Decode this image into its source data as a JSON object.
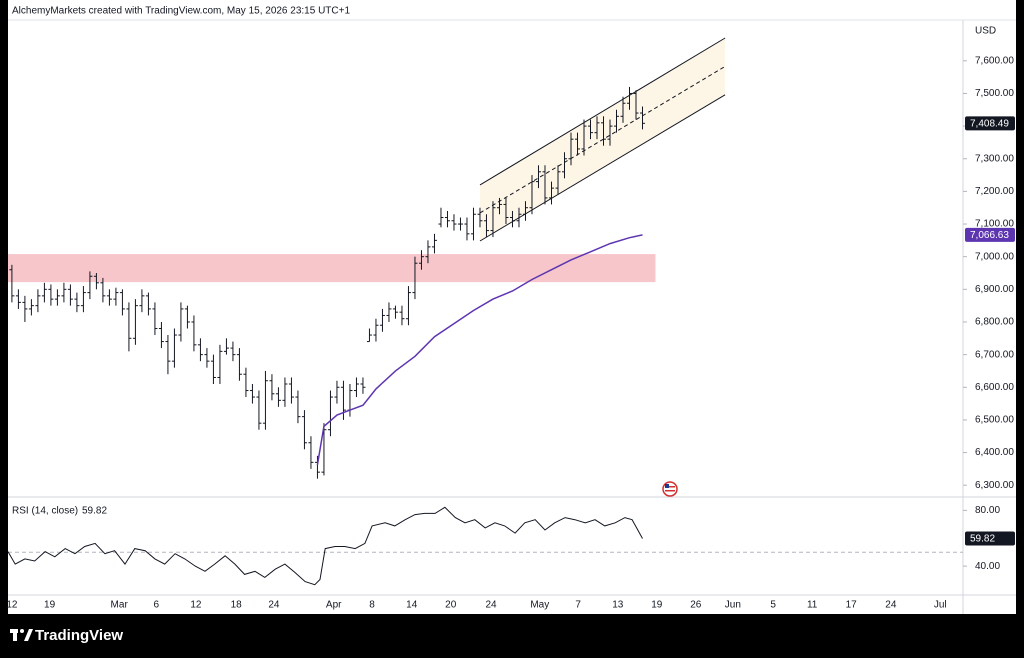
{
  "chart_data": [
    {
      "type": "ohlc",
      "title": "AlchemyMarkets created with TradingView.com, May 15, 2026 23:15 UTC+1",
      "currency": "USD",
      "color": "#131722",
      "x": [
        0,
        1,
        2,
        3,
        4,
        5,
        6,
        7,
        8,
        9,
        10,
        11,
        12,
        13,
        14,
        15,
        16,
        17,
        18,
        19,
        20,
        21,
        22,
        23,
        24,
        25,
        26,
        27,
        28,
        29,
        30,
        31,
        32,
        33,
        34,
        35,
        36,
        37,
        38,
        39,
        40,
        41,
        42,
        43,
        44,
        45,
        46,
        47,
        48,
        49,
        50,
        51,
        52,
        53,
        54,
        55,
        56,
        57,
        58,
        59,
        60,
        61,
        62,
        63,
        64,
        65,
        66,
        67,
        68,
        69,
        70,
        71,
        72,
        73,
        74,
        75,
        76,
        77,
        78,
        79,
        80,
        81,
        82,
        83,
        84,
        85,
        86,
        87,
        88,
        89,
        90,
        91,
        92,
        93,
        94,
        95,
        96,
        97
      ],
      "ohlc": [
        [
          6960,
          6975,
          6860,
          6880
        ],
        [
          6880,
          6900,
          6840,
          6860
        ],
        [
          6860,
          6880,
          6800,
          6840
        ],
        [
          6840,
          6870,
          6820,
          6850
        ],
        [
          6850,
          6900,
          6830,
          6880
        ],
        [
          6880,
          6920,
          6860,
          6900
        ],
        [
          6900,
          6915,
          6850,
          6870
        ],
        [
          6870,
          6900,
          6850,
          6880
        ],
        [
          6880,
          6920,
          6860,
          6900
        ],
        [
          6900,
          6915,
          6850,
          6870
        ],
        [
          6870,
          6890,
          6830,
          6850
        ],
        [
          6850,
          6910,
          6830,
          6890
        ],
        [
          6890,
          6955,
          6870,
          6940
        ],
        [
          6940,
          6950,
          6900,
          6920
        ],
        [
          6920,
          6935,
          6860,
          6880
        ],
        [
          6880,
          6900,
          6850,
          6870
        ],
        [
          6870,
          6905,
          6850,
          6890
        ],
        [
          6890,
          6900,
          6820,
          6840
        ],
        [
          6840,
          6860,
          6710,
          6750
        ],
        [
          6750,
          6870,
          6730,
          6850
        ],
        [
          6850,
          6900,
          6830,
          6880
        ],
        [
          6880,
          6890,
          6820,
          6840
        ],
        [
          6840,
          6860,
          6760,
          6780
        ],
        [
          6780,
          6800,
          6720,
          6740
        ],
        [
          6740,
          6760,
          6640,
          6680
        ],
        [
          6680,
          6780,
          6660,
          6760
        ],
        [
          6760,
          6860,
          6740,
          6840
        ],
        [
          6840,
          6850,
          6780,
          6800
        ],
        [
          6800,
          6820,
          6710,
          6730
        ],
        [
          6730,
          6750,
          6680,
          6700
        ],
        [
          6700,
          6720,
          6660,
          6680
        ],
        [
          6680,
          6700,
          6610,
          6630
        ],
        [
          6630,
          6730,
          6610,
          6710
        ],
        [
          6710,
          6750,
          6700,
          6720
        ],
        [
          6720,
          6740,
          6680,
          6700
        ],
        [
          6700,
          6720,
          6620,
          6640
        ],
        [
          6640,
          6660,
          6570,
          6590
        ],
        [
          6590,
          6610,
          6550,
          6570
        ],
        [
          6570,
          6590,
          6470,
          6490
        ],
        [
          6490,
          6650,
          6470,
          6620
        ],
        [
          6620,
          6640,
          6560,
          6580
        ],
        [
          6580,
          6600,
          6540,
          6560
        ],
        [
          6560,
          6630,
          6540,
          6610
        ],
        [
          6610,
          6630,
          6550,
          6570
        ],
        [
          6570,
          6590,
          6490,
          6510
        ],
        [
          6510,
          6530,
          6410,
          6430
        ],
        [
          6430,
          6450,
          6350,
          6370
        ],
        [
          6370,
          6390,
          6320,
          6340
        ],
        [
          6340,
          6490,
          6330,
          6470
        ],
        [
          6470,
          6590,
          6450,
          6570
        ],
        [
          6570,
          6620,
          6550,
          6600
        ],
        [
          6600,
          6620,
          6500,
          6530
        ],
        [
          6530,
          6610,
          6510,
          6590
        ],
        [
          6590,
          6630,
          6570,
          6610
        ],
        [
          6610,
          6630,
          6580,
          6600
        ],
        [
          6740,
          6780,
          6740,
          6760
        ],
        [
          6760,
          6810,
          6740,
          6790
        ],
        [
          6790,
          6840,
          6770,
          6820
        ],
        [
          6820,
          6860,
          6800,
          6840
        ],
        [
          6840,
          6850,
          6810,
          6830
        ],
        [
          6830,
          6850,
          6790,
          6810
        ],
        [
          6810,
          6910,
          6790,
          6890
        ],
        [
          6890,
          7000,
          6870,
          6980
        ],
        [
          6980,
          7020,
          6960,
          7000
        ],
        [
          7000,
          7050,
          6980,
          7030
        ],
        [
          7030,
          7070,
          7010,
          7050
        ],
        [
          7100,
          7150,
          7090,
          7120
        ],
        [
          7120,
          7140,
          7090,
          7110
        ],
        [
          7110,
          7130,
          7080,
          7100
        ],
        [
          7100,
          7120,
          7080,
          7100
        ],
        [
          7100,
          7120,
          7050,
          7070
        ],
        [
          7070,
          7150,
          7050,
          7130
        ],
        [
          7130,
          7150,
          7090,
          7110
        ],
        [
          7110,
          7130,
          7060,
          7080
        ],
        [
          7080,
          7170,
          7060,
          7150
        ],
        [
          7150,
          7180,
          7130,
          7160
        ],
        [
          7160,
          7180,
          7100,
          7120
        ],
        [
          7120,
          7140,
          7090,
          7110
        ],
        [
          7110,
          7150,
          7090,
          7130
        ],
        [
          7130,
          7170,
          7110,
          7150
        ],
        [
          7150,
          7250,
          7130,
          7230
        ],
        [
          7230,
          7280,
          7210,
          7260
        ],
        [
          7260,
          7280,
          7160,
          7180
        ],
        [
          7180,
          7230,
          7160,
          7210
        ],
        [
          7210,
          7280,
          7190,
          7260
        ],
        [
          7260,
          7320,
          7240,
          7300
        ],
        [
          7300,
          7380,
          7280,
          7360
        ],
        [
          7360,
          7380,
          7310,
          7330
        ],
        [
          7330,
          7420,
          7310,
          7400
        ],
        [
          7400,
          7420,
          7360,
          7380
        ],
        [
          7380,
          7430,
          7360,
          7410
        ],
        [
          7410,
          7430,
          7340,
          7360
        ],
        [
          7360,
          7420,
          7340,
          7400
        ],
        [
          7400,
          7450,
          7380,
          7430
        ],
        [
          7430,
          7490,
          7410,
          7470
        ],
        [
          7470,
          7520,
          7450,
          7500
        ],
        [
          7500,
          7510,
          7420,
          7440
        ],
        [
          7440,
          7460,
          7390,
          7408.49
        ]
      ],
      "last_label": "7,408.49",
      "ylim": [
        6270,
        7725
      ],
      "yticks": [
        {
          "value": 6300,
          "label": "6,300.00"
        },
        {
          "value": 6400,
          "label": "6,400.00"
        },
        {
          "value": 6500,
          "label": "6,500.00"
        },
        {
          "value": 6600,
          "label": "6,600.00"
        },
        {
          "value": 6700,
          "label": "6,700.00"
        },
        {
          "value": 6800,
          "label": "6,800.00"
        },
        {
          "value": 6900,
          "label": "6,900.00"
        },
        {
          "value": 7000,
          "label": "7,000.00"
        },
        {
          "value": 7100,
          "label": "7,100.00"
        },
        {
          "value": 7200,
          "label": "7,200.00"
        },
        {
          "value": 7300,
          "label": "7,300.00"
        },
        {
          "value": 7400,
          "label": "7,400.00"
        },
        {
          "value": 7500,
          "label": "7,500.00"
        },
        {
          "value": 7600,
          "label": "7,600.00"
        }
      ],
      "xlim": [
        -0.6,
        146.3
      ],
      "xticks": [
        {
          "value": 0,
          "label": "12"
        },
        {
          "value": 5.8,
          "label": "19"
        },
        {
          "value": 16.5,
          "label": "Mar"
        },
        {
          "value": 22.2,
          "label": "6"
        },
        {
          "value": 28.3,
          "label": "12"
        },
        {
          "value": 34.5,
          "label": "18"
        },
        {
          "value": 40.3,
          "label": "24"
        },
        {
          "value": 49.5,
          "label": "Apr"
        },
        {
          "value": 55.4,
          "label": "8"
        },
        {
          "value": 61.5,
          "label": "14"
        },
        {
          "value": 67.5,
          "label": "20"
        },
        {
          "value": 73.7,
          "label": "24"
        },
        {
          "value": 81.2,
          "label": "May"
        },
        {
          "value": 87.1,
          "label": "7"
        },
        {
          "value": 93.2,
          "label": "13"
        },
        {
          "value": 99.2,
          "label": "19"
        },
        {
          "value": 105.2,
          "label": "26"
        },
        {
          "value": 110.9,
          "label": "Jun"
        },
        {
          "value": 117.1,
          "label": "5"
        },
        {
          "value": 123.1,
          "label": "11"
        },
        {
          "value": 129.1,
          "label": "17"
        },
        {
          "value": 135.2,
          "label": "24"
        },
        {
          "value": 142.8,
          "label": "Jul"
        }
      ],
      "ma": {
        "color": "#5e35b1",
        "x": [
          47,
          48,
          50,
          52,
          54,
          56,
          59,
          62,
          65,
          68,
          71,
          74,
          77,
          80,
          83,
          86,
          89,
          92,
          95,
          97
        ],
        "values": [
          6362,
          6480,
          6515,
          6530,
          6545,
          6595,
          6650,
          6695,
          6755,
          6795,
          6835,
          6870,
          6895,
          6930,
          6960,
          6990,
          7015,
          7040,
          7058,
          7066.63
        ],
        "last_label": "7,066.63"
      },
      "channel": {
        "color": "#131722",
        "fill": "#fdf5e6",
        "x": [
          72,
          109.7
        ],
        "upper": [
          7220,
          7670
        ],
        "middle": [
          7134,
          7583
        ],
        "lower": [
          7048,
          7496
        ]
      },
      "zone": {
        "color": "#f6c6cb",
        "x": [
          -0.6,
          99
        ],
        "y": [
          6922,
          7008
        ]
      }
    },
    {
      "type": "line",
      "title": "RSI (14, close)",
      "x": [
        -0.6,
        0.5,
        2,
        3.5,
        5.1,
        6.6,
        8.2,
        9.7,
        11.2,
        12.8,
        14.3,
        15.8,
        17.4,
        18.9,
        20.5,
        22,
        23.5,
        25.1,
        26.6,
        28.2,
        29.7,
        31.2,
        32.8,
        34.3,
        35.8,
        37.4,
        38.9,
        40.5,
        42,
        43.5,
        45.1,
        46.6,
        47.4,
        48.2,
        49.7,
        51.2,
        52.8,
        54.3,
        55.4,
        57.4,
        58.9,
        60.5,
        62,
        63.5,
        65.1,
        66.6,
        68.2,
        69.7,
        71.2,
        72.8,
        74.3,
        75.8,
        77.4,
        78.9,
        80.5,
        82,
        83.5,
        85.1,
        86.6,
        88.2,
        89.7,
        91.2,
        92.8,
        94.3,
        95.4,
        97
      ],
      "series": [
        {
          "color": "#131722",
          "values": [
            50.4,
            41.5,
            45.2,
            43.7,
            50.4,
            46.7,
            52.6,
            48.9,
            54.1,
            56.3,
            48.9,
            51.1,
            41.5,
            52.6,
            51.1,
            45.2,
            41.5,
            48.9,
            45.2,
            40,
            36.3,
            41.5,
            47.4,
            41.5,
            34.1,
            36.3,
            31.9,
            37.8,
            41.5,
            35.6,
            28.9,
            26.7,
            30.4,
            52.6,
            54.1,
            54.1,
            52.6,
            56.3,
            68.9,
            71.1,
            68.9,
            73.3,
            77,
            77.8,
            77.8,
            82.2,
            74.8,
            71.1,
            73.3,
            67.4,
            71.1,
            68.9,
            63.7,
            71.1,
            73.3,
            65.9,
            71.1,
            74.8,
            73.3,
            71.1,
            73.3,
            68.9,
            71.1,
            74.8,
            73.3,
            59.82
          ]
        }
      ],
      "midline": 50,
      "ylim": [
        19.3,
        89.6
      ],
      "yticks": [
        {
          "value": 80,
          "label": "80.00"
        },
        {
          "value": 40,
          "label": "40.00"
        }
      ],
      "xlim": [
        -0.6,
        146.3
      ]
    }
  ],
  "footer_brand": "TradingView"
}
